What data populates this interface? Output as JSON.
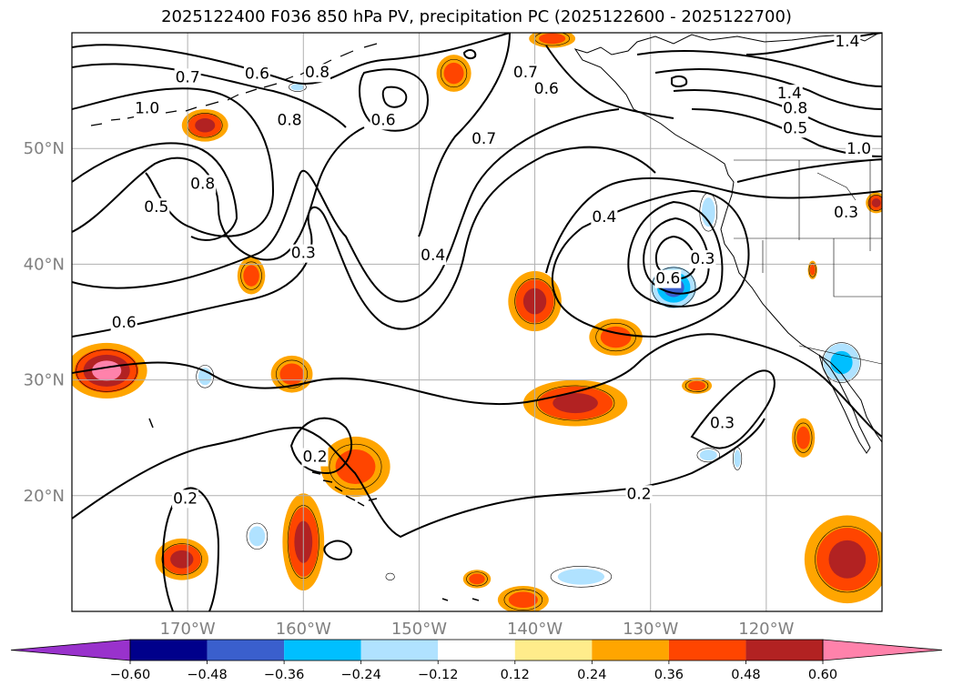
{
  "chart_data": {
    "type": "heatmap",
    "title": "2025122400 F036 850 hPa PV, precipitation PC (2025122600 - 2025122700)",
    "xlabel": "",
    "ylabel": "",
    "lon_range": [
      -180,
      -110
    ],
    "lat_range": [
      10,
      60
    ],
    "lon_ticks": [
      "170°W",
      "160°W",
      "150°W",
      "140°W",
      "130°W",
      "120°W"
    ],
    "lon_tick_values": [
      -170,
      -160,
      -150,
      -140,
      -130,
      -120
    ],
    "lat_ticks": [
      "50°N",
      "40°N",
      "30°N",
      "20°N"
    ],
    "lat_tick_values": [
      50,
      40,
      30,
      20
    ],
    "grid": true,
    "colorbar": {
      "orientation": "horizontal",
      "extend": "both",
      "levels": [
        -0.72,
        -0.6,
        -0.48,
        -0.36,
        -0.24,
        -0.12,
        0.12,
        0.24,
        0.36,
        0.48,
        0.6,
        0.72
      ],
      "tick_labels": [
        "−0.60",
        "−0.48",
        "−0.36",
        "−0.24",
        "−0.12",
        "0.12",
        "0.24",
        "0.36",
        "0.48",
        "0.60"
      ],
      "colors": [
        "#9932cc",
        "#00008b",
        "#3a5fcd",
        "#00bfff",
        "#b0e2ff",
        "#ffffff",
        "#ffec8b",
        "#ffa500",
        "#ff4500",
        "#b22222",
        "#ff82ab"
      ]
    },
    "pv_contour_labels": [
      {
        "text": "0.7",
        "lon": -170.0,
        "lat": 56.2
      },
      {
        "text": "0.6",
        "lon": -164.0,
        "lat": 56.5
      },
      {
        "text": "0.8",
        "lon": -158.8,
        "lat": 56.6
      },
      {
        "text": "0.7",
        "lon": -140.8,
        "lat": 56.6
      },
      {
        "text": "0.6",
        "lon": -139.0,
        "lat": 55.2
      },
      {
        "text": "1.4",
        "lon": -113.0,
        "lat": 59.3
      },
      {
        "text": "1.4",
        "lon": -118.0,
        "lat": 54.8
      },
      {
        "text": "1.0",
        "lon": -173.5,
        "lat": 53.5
      },
      {
        "text": "0.8",
        "lon": -161.2,
        "lat": 52.5
      },
      {
        "text": "0.6",
        "lon": -153.1,
        "lat": 52.5
      },
      {
        "text": "0.8",
        "lon": -117.5,
        "lat": 53.5
      },
      {
        "text": "0.5",
        "lon": -117.5,
        "lat": 51.8
      },
      {
        "text": "1.0",
        "lon": -112.0,
        "lat": 50.0
      },
      {
        "text": "0.7",
        "lon": -144.4,
        "lat": 50.9
      },
      {
        "text": "0.8",
        "lon": -168.7,
        "lat": 47.0
      },
      {
        "text": "0.5",
        "lon": -172.7,
        "lat": 45.0
      },
      {
        "text": "0.3",
        "lon": -113.1,
        "lat": 44.5
      },
      {
        "text": "0.4",
        "lon": -134.0,
        "lat": 44.1
      },
      {
        "text": "0.3",
        "lon": -160.0,
        "lat": 41.0
      },
      {
        "text": "0.4",
        "lon": -148.8,
        "lat": 40.8
      },
      {
        "text": "0.3",
        "lon": -125.5,
        "lat": 40.5
      },
      {
        "text": "0.6",
        "lon": -128.5,
        "lat": 38.8
      },
      {
        "text": "0.6",
        "lon": -175.5,
        "lat": 35.0
      },
      {
        "text": "0.3",
        "lon": -123.8,
        "lat": 26.3
      },
      {
        "text": "0.2",
        "lon": -159.0,
        "lat": 23.4
      },
      {
        "text": "0.2",
        "lon": -170.2,
        "lat": 19.8
      },
      {
        "text": "0.2",
        "lon": -131.0,
        "lat": 20.2
      }
    ],
    "precip_regions": [
      {
        "lon": -168.5,
        "lat": 52.0,
        "rx": 2.0,
        "ry": 1.4,
        "value": 0.4
      },
      {
        "lon": -147.0,
        "lat": 56.5,
        "rx": 1.5,
        "ry": 1.6,
        "value": 0.3
      },
      {
        "lon": -138.5,
        "lat": 59.5,
        "rx": 2.0,
        "ry": 0.8,
        "value": 0.3
      },
      {
        "lon": -164.5,
        "lat": 39.0,
        "rx": 1.2,
        "ry": 1.6,
        "value": 0.3
      },
      {
        "lon": -177.0,
        "lat": 30.8,
        "rx": 3.5,
        "ry": 2.4,
        "value": 0.5
      },
      {
        "lon": -161.0,
        "lat": 30.5,
        "rx": 1.8,
        "ry": 1.6,
        "value": 0.35
      },
      {
        "lon": -140.0,
        "lat": 36.8,
        "rx": 2.3,
        "ry": 2.6,
        "value": 0.4
      },
      {
        "lon": -133.0,
        "lat": 33.7,
        "rx": 2.3,
        "ry": 1.6,
        "value": 0.3
      },
      {
        "lon": -136.5,
        "lat": 28.0,
        "rx": 4.5,
        "ry": 2.0,
        "value": 0.4
      },
      {
        "lon": -126.0,
        "lat": 29.5,
        "rx": 1.3,
        "ry": 0.7,
        "value": 0.24
      },
      {
        "lon": -155.5,
        "lat": 22.5,
        "rx": 3.0,
        "ry": 2.6,
        "value": 0.3
      },
      {
        "lon": -160.0,
        "lat": 16.0,
        "rx": 1.8,
        "ry": 4.2,
        "value": 0.45
      },
      {
        "lon": -170.5,
        "lat": 14.5,
        "rx": 2.3,
        "ry": 1.8,
        "value": 0.4
      },
      {
        "lon": -141.0,
        "lat": 11.0,
        "rx": 2.2,
        "ry": 1.2,
        "value": 0.3
      },
      {
        "lon": -145.0,
        "lat": 12.8,
        "rx": 1.2,
        "ry": 0.8,
        "value": 0.3
      },
      {
        "lon": -113.0,
        "lat": 14.5,
        "rx": 3.7,
        "ry": 3.8,
        "value": 0.4
      },
      {
        "lon": -116.8,
        "lat": 25.0,
        "rx": 1.0,
        "ry": 1.7,
        "value": 0.3
      },
      {
        "lon": -110.5,
        "lat": 45.3,
        "rx": 0.9,
        "ry": 0.9,
        "value": 0.4
      },
      {
        "lon": -116.0,
        "lat": 39.5,
        "rx": 0.4,
        "ry": 0.8,
        "value": 0.3
      },
      {
        "lon": -168.5,
        "lat": 47.0,
        "rx": 0.8,
        "ry": 0.5,
        "value": -0.15
      },
      {
        "lon": -160.5,
        "lat": 55.3,
        "rx": 1.0,
        "ry": 0.5,
        "value": -0.3
      },
      {
        "lon": -168.5,
        "lat": 30.3,
        "rx": 1.0,
        "ry": 1.3,
        "value": -0.3
      },
      {
        "lon": -128.0,
        "lat": 38.0,
        "rx": 2.5,
        "ry": 2.3,
        "value": -0.5
      },
      {
        "lon": -125.0,
        "lat": 44.5,
        "rx": 1.0,
        "ry": 2.2,
        "value": -0.3
      },
      {
        "lon": -113.5,
        "lat": 31.5,
        "rx": 2.2,
        "ry": 2.3,
        "value": -0.45
      },
      {
        "lon": -164.0,
        "lat": 16.5,
        "rx": 1.2,
        "ry": 1.5,
        "value": -0.35
      },
      {
        "lon": -136.0,
        "lat": 13.0,
        "rx": 3.5,
        "ry": 1.2,
        "value": -0.3
      },
      {
        "lon": -125.0,
        "lat": 23.5,
        "rx": 1.3,
        "ry": 0.8,
        "value": -0.3
      },
      {
        "lon": -122.5,
        "lat": 23.2,
        "rx": 0.5,
        "ry": 1.3,
        "value": -0.25
      },
      {
        "lon": -152.5,
        "lat": 13.0,
        "rx": 0.5,
        "ry": 0.4,
        "value": -0.15
      }
    ]
  }
}
